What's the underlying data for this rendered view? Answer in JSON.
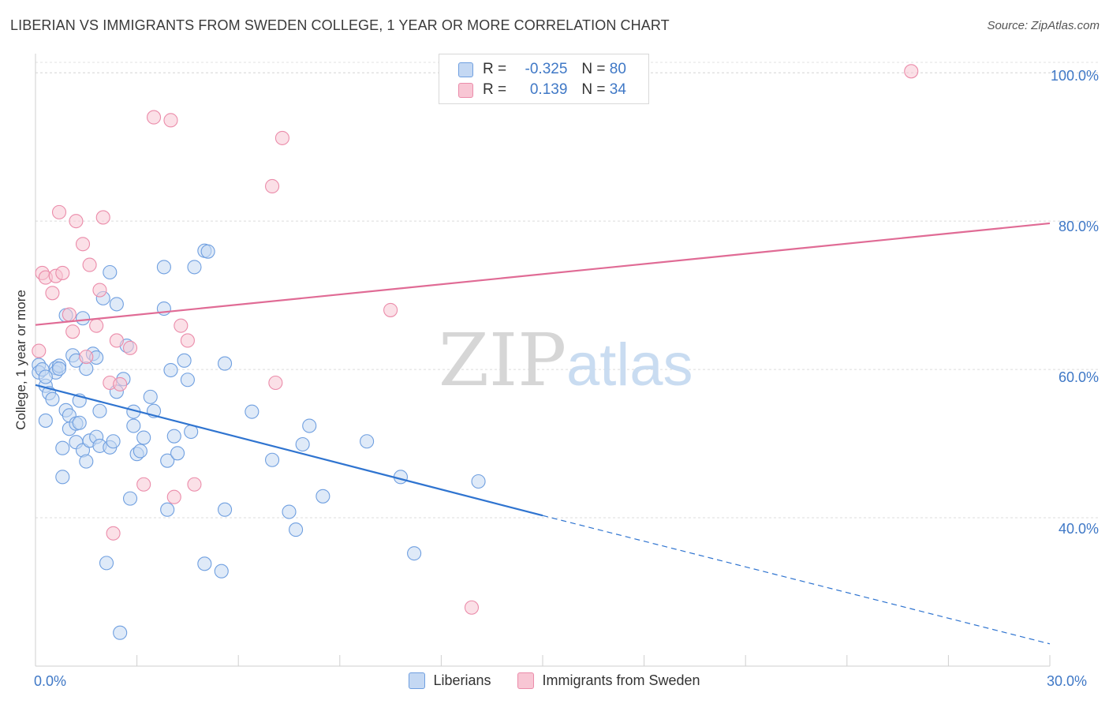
{
  "title": "LIBERIAN VS IMMIGRANTS FROM SWEDEN COLLEGE, 1 YEAR OR MORE CORRELATION CHART",
  "source": "Source: ZipAtlas.com",
  "watermark": {
    "zip": "ZIP",
    "atlas": "atlas"
  },
  "legend_top": [
    {
      "r_label": "R =",
      "r_value": "-0.325",
      "n_label": "N =",
      "n_value": "80"
    },
    {
      "r_label": "R =",
      "r_value": "0.139",
      "n_label": "N =",
      "n_value": "34"
    }
  ],
  "chart_data": {
    "type": "scatter",
    "xlabel": "",
    "ylabel": "College, 1 year or more",
    "xlim": [
      0,
      30
    ],
    "ylim": [
      20,
      103
    ],
    "x_tick_labels": [
      "0.0%",
      "30.0%"
    ],
    "y_ticks": [
      40,
      60,
      80,
      100
    ],
    "y_tick_labels": [
      "40.0%",
      "60.0%",
      "80.0%",
      "100.0%"
    ],
    "grid": "horizontal dashed",
    "legend_position": "bottom-center",
    "series": [
      {
        "name": "Liberians",
        "color": "#6f9fe0",
        "fill": "#c4d8f3",
        "trend": {
          "x0": 0,
          "y0": 57.9,
          "x1": 15,
          "y1": 40.3,
          "dash_to_x": 30,
          "dash_to_y": 23.0
        },
        "points": [
          [
            0.1,
            60.6
          ],
          [
            0.1,
            59.6
          ],
          [
            0.2,
            60.0
          ],
          [
            0.3,
            57.8
          ],
          [
            0.3,
            53.1
          ],
          [
            0.4,
            56.8
          ],
          [
            0.5,
            56.0
          ],
          [
            0.6,
            60.2
          ],
          [
            0.6,
            59.6
          ],
          [
            0.7,
            60.5
          ],
          [
            0.7,
            60.1
          ],
          [
            0.8,
            49.4
          ],
          [
            0.8,
            45.5
          ],
          [
            0.9,
            54.5
          ],
          [
            0.9,
            67.3
          ],
          [
            1.0,
            53.8
          ],
          [
            1.0,
            52.0
          ],
          [
            1.1,
            61.9
          ],
          [
            1.2,
            50.2
          ],
          [
            1.2,
            52.7
          ],
          [
            1.3,
            52.8
          ],
          [
            1.3,
            55.8
          ],
          [
            1.4,
            49.1
          ],
          [
            1.4,
            66.9
          ],
          [
            1.5,
            47.6
          ],
          [
            1.5,
            60.1
          ],
          [
            1.6,
            50.4
          ],
          [
            1.7,
            62.1
          ],
          [
            1.8,
            61.6
          ],
          [
            1.8,
            50.9
          ],
          [
            1.9,
            54.4
          ],
          [
            1.9,
            49.7
          ],
          [
            2.0,
            69.6
          ],
          [
            2.2,
            49.5
          ],
          [
            2.2,
            73.1
          ],
          [
            2.3,
            50.3
          ],
          [
            2.4,
            68.8
          ],
          [
            2.4,
            57.0
          ],
          [
            2.5,
            24.5
          ],
          [
            2.6,
            58.7
          ],
          [
            2.7,
            63.2
          ],
          [
            2.8,
            42.6
          ],
          [
            2.9,
            52.4
          ],
          [
            2.9,
            54.3
          ],
          [
            3.0,
            48.6
          ],
          [
            3.1,
            49.0
          ],
          [
            3.2,
            50.8
          ],
          [
            3.4,
            56.3
          ],
          [
            3.5,
            54.4
          ],
          [
            3.8,
            73.8
          ],
          [
            3.8,
            68.2
          ],
          [
            3.9,
            47.7
          ],
          [
            3.9,
            41.1
          ],
          [
            4.0,
            59.9
          ],
          [
            4.1,
            51.0
          ],
          [
            4.2,
            48.7
          ],
          [
            4.4,
            61.2
          ],
          [
            4.5,
            58.6
          ],
          [
            4.6,
            51.6
          ],
          [
            4.7,
            73.8
          ],
          [
            5.0,
            76.0
          ],
          [
            5.1,
            75.9
          ],
          [
            5.0,
            33.8
          ],
          [
            5.5,
            32.8
          ],
          [
            5.6,
            41.1
          ],
          [
            5.6,
            60.8
          ],
          [
            6.4,
            54.3
          ],
          [
            7.0,
            47.8
          ],
          [
            7.5,
            40.8
          ],
          [
            7.7,
            38.4
          ],
          [
            7.9,
            49.9
          ],
          [
            8.1,
            52.4
          ],
          [
            8.5,
            42.9
          ],
          [
            9.8,
            50.3
          ],
          [
            10.8,
            45.5
          ],
          [
            11.2,
            35.2
          ],
          [
            13.1,
            44.9
          ],
          [
            2.1,
            33.9
          ],
          [
            1.2,
            61.2
          ],
          [
            0.3,
            59.0
          ]
        ]
      },
      {
        "name": "Immigrants from Sweden",
        "color": "#eb8caa",
        "fill": "#f8c6d4",
        "trend": {
          "x0": 0,
          "y0": 66.0,
          "x1": 30,
          "y1": 79.7
        },
        "points": [
          [
            0.1,
            62.5
          ],
          [
            0.2,
            73.0
          ],
          [
            0.3,
            72.4
          ],
          [
            0.5,
            70.3
          ],
          [
            0.6,
            72.6
          ],
          [
            0.7,
            81.2
          ],
          [
            0.8,
            73.0
          ],
          [
            1.0,
            67.4
          ],
          [
            1.1,
            65.1
          ],
          [
            1.2,
            80.0
          ],
          [
            1.4,
            76.9
          ],
          [
            1.5,
            61.7
          ],
          [
            1.6,
            74.1
          ],
          [
            1.8,
            65.9
          ],
          [
            1.9,
            70.7
          ],
          [
            2.0,
            80.5
          ],
          [
            2.2,
            58.2
          ],
          [
            2.3,
            37.9
          ],
          [
            2.4,
            63.9
          ],
          [
            2.5,
            58.0
          ],
          [
            2.8,
            62.9
          ],
          [
            3.2,
            44.5
          ],
          [
            3.5,
            94.0
          ],
          [
            4.0,
            93.6
          ],
          [
            4.1,
            42.8
          ],
          [
            4.3,
            65.9
          ],
          [
            4.5,
            63.9
          ],
          [
            4.7,
            44.5
          ],
          [
            7.0,
            84.7
          ],
          [
            7.1,
            58.2
          ],
          [
            7.3,
            91.2
          ],
          [
            10.5,
            68.0
          ],
          [
            12.9,
            27.9
          ],
          [
            25.9,
            100.2
          ]
        ]
      }
    ]
  }
}
